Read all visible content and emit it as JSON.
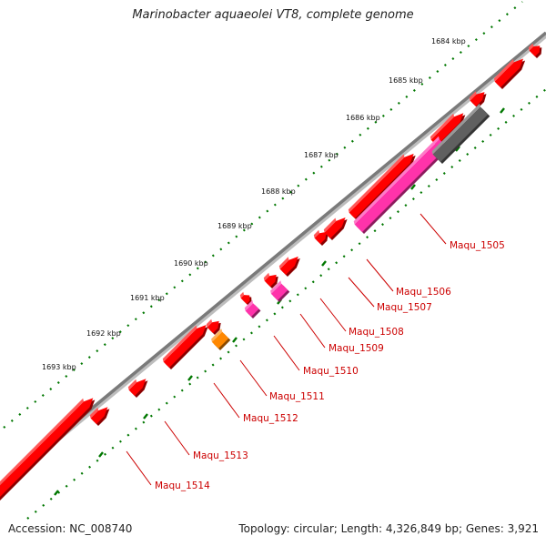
{
  "title": "Marinobacter aquaeolei VT8, complete genome",
  "footer": {
    "accession": "Accession: NC_008740",
    "summary": "Topology: circular; Length: 4,326,849 bp; Genes: 3,921"
  },
  "colors": {
    "backbone": "#7a7a7a",
    "cds": "#ff0000",
    "label": "#cc0000",
    "leader": "#cc0000",
    "tick_ring": "#007700",
    "pink": "#ff33aa",
    "orange": "#ff8800",
    "gray_feature": "#606060"
  },
  "ticks": [
    "1684 kbp",
    "1685 kbp",
    "1686 kbp",
    "1687 kbp",
    "1688 kbp",
    "1689 kbp",
    "1690 kbp",
    "1691 kbp",
    "1692 kbp",
    "1693 kbp"
  ],
  "genes": [
    "Maqu_1505",
    "Maqu_1506",
    "Maqu_1507",
    "Maqu_1508",
    "Maqu_1509",
    "Maqu_1510",
    "Maqu_1511",
    "Maqu_1512",
    "Maqu_1513",
    "Maqu_1514"
  ]
}
